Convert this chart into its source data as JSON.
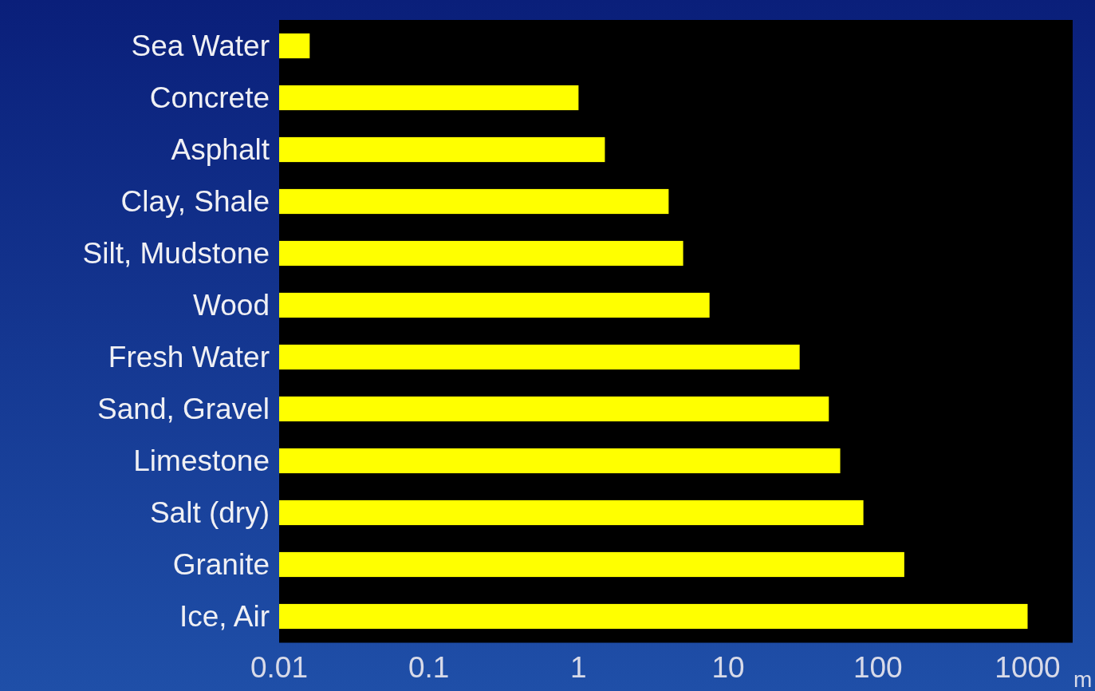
{
  "chart_data": {
    "type": "bar",
    "orientation": "horizontal",
    "log": "x",
    "xlabel": "m",
    "categories": [
      "Sea Water",
      "Concrete",
      "Asphalt",
      "Clay, Shale",
      "Silt, Mudstone",
      "Wood",
      "Fresh Water",
      "Sand, Gravel",
      "Limestone",
      "Salt (dry)",
      "Granite",
      "Ice, Air"
    ],
    "values": [
      0.016,
      1,
      1.5,
      4,
      5,
      7.5,
      30,
      47,
      56,
      80,
      150,
      1000
    ],
    "color": "#ffff00",
    "xlim": [
      0.01,
      2000
    ],
    "xticks": [
      0.01,
      0.1,
      1,
      10,
      100,
      1000
    ],
    "grid": false
  }
}
